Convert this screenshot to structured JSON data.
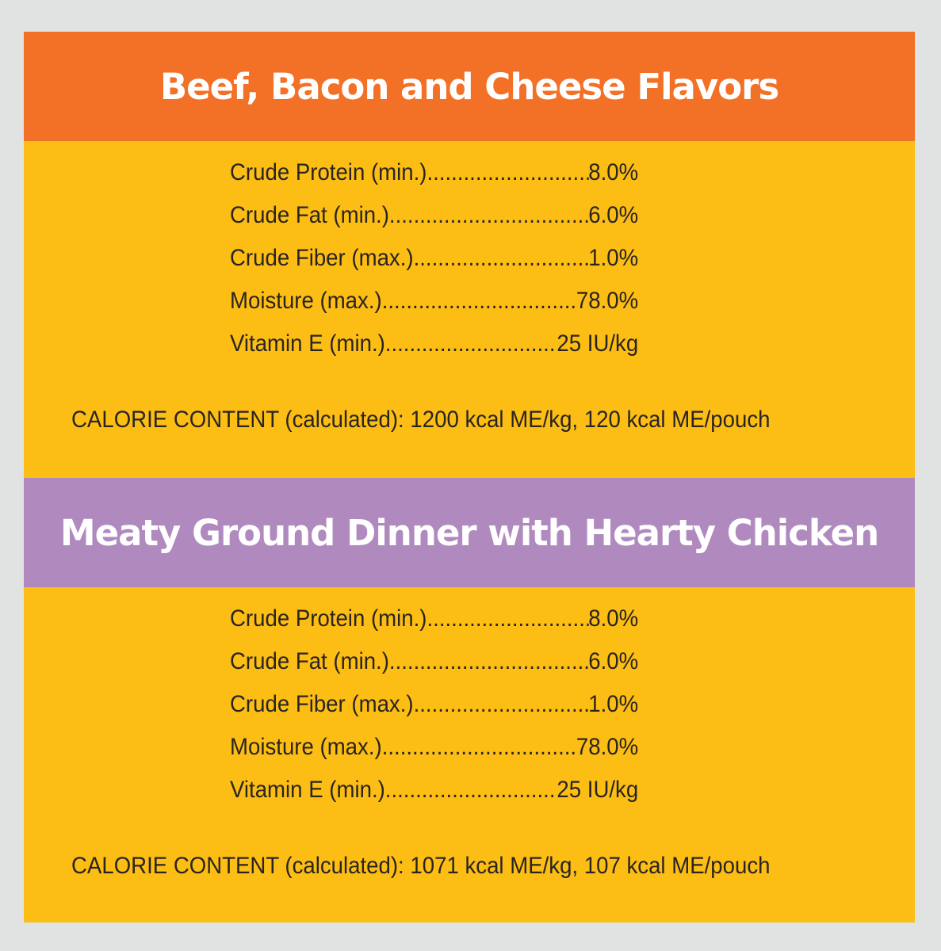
{
  "sections": [
    {
      "title": "Beef, Bacon and Cheese Flavors",
      "header_color": "#f37126",
      "rows": [
        {
          "label": "Crude Protein (min.)",
          "value": "8.0%"
        },
        {
          "label": "Crude Fat (min.)",
          "value": "6.0%"
        },
        {
          "label": "Crude Fiber (max.)",
          "value": "1.0%"
        },
        {
          "label": "Moisture (max.)",
          "value": "78.0%"
        },
        {
          "label": "Vitamin E (min.)",
          "value": "25 IU/kg"
        }
      ],
      "calorie": "CALORIE CONTENT (calculated): 1200 kcal ME/kg, 120 kcal ME/pouch"
    },
    {
      "title": "Meaty Ground Dinner with Hearty Chicken",
      "header_color": "#b089bf",
      "rows": [
        {
          "label": "Crude Protein (min.)",
          "value": "8.0%"
        },
        {
          "label": "Crude Fat (min.)",
          "value": "6.0%"
        },
        {
          "label": "Crude Fiber (max.)",
          "value": "1.0%"
        },
        {
          "label": "Moisture (max.)",
          "value": "78.0%"
        },
        {
          "label": "Vitamin E (min.)",
          "value": "25 IU/kg"
        }
      ],
      "calorie": "CALORIE CONTENT (calculated): 1071 kcal ME/kg, 107 kcal ME/pouch"
    }
  ],
  "colors": {
    "background": "#fcbd15",
    "outer": "#e1e2e2",
    "text": "#2a2420"
  }
}
